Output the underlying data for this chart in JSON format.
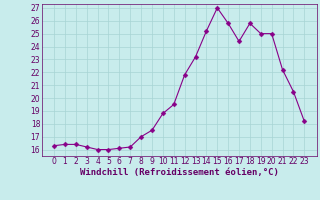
{
  "x": [
    0,
    1,
    2,
    3,
    4,
    5,
    6,
    7,
    8,
    9,
    10,
    11,
    12,
    13,
    14,
    15,
    16,
    17,
    18,
    19,
    20,
    21,
    22,
    23
  ],
  "y": [
    16.3,
    16.4,
    16.4,
    16.2,
    16.0,
    16.0,
    16.1,
    16.2,
    17.0,
    17.5,
    18.8,
    19.5,
    21.8,
    23.2,
    25.2,
    27.0,
    25.8,
    24.4,
    25.8,
    25.0,
    25.0,
    22.2,
    20.5,
    18.2
  ],
  "line_color": "#880088",
  "marker": "D",
  "marker_size": 2.5,
  "bg_color": "#c8ecec",
  "grid_color": "#a8d4d4",
  "ylim_min": 15.5,
  "ylim_max": 27.3,
  "yticks": [
    16,
    17,
    18,
    19,
    20,
    21,
    22,
    23,
    24,
    25,
    26,
    27
  ],
  "xticks": [
    0,
    1,
    2,
    3,
    4,
    5,
    6,
    7,
    8,
    9,
    10,
    11,
    12,
    13,
    14,
    15,
    16,
    17,
    18,
    19,
    20,
    21,
    22,
    23
  ],
  "xlabel": "Windchill (Refroidissement éolien,°C)",
  "xlabel_fontsize": 6.5,
  "tick_fontsize": 5.5,
  "tick_color": "#660066",
  "spine_color": "#660066"
}
